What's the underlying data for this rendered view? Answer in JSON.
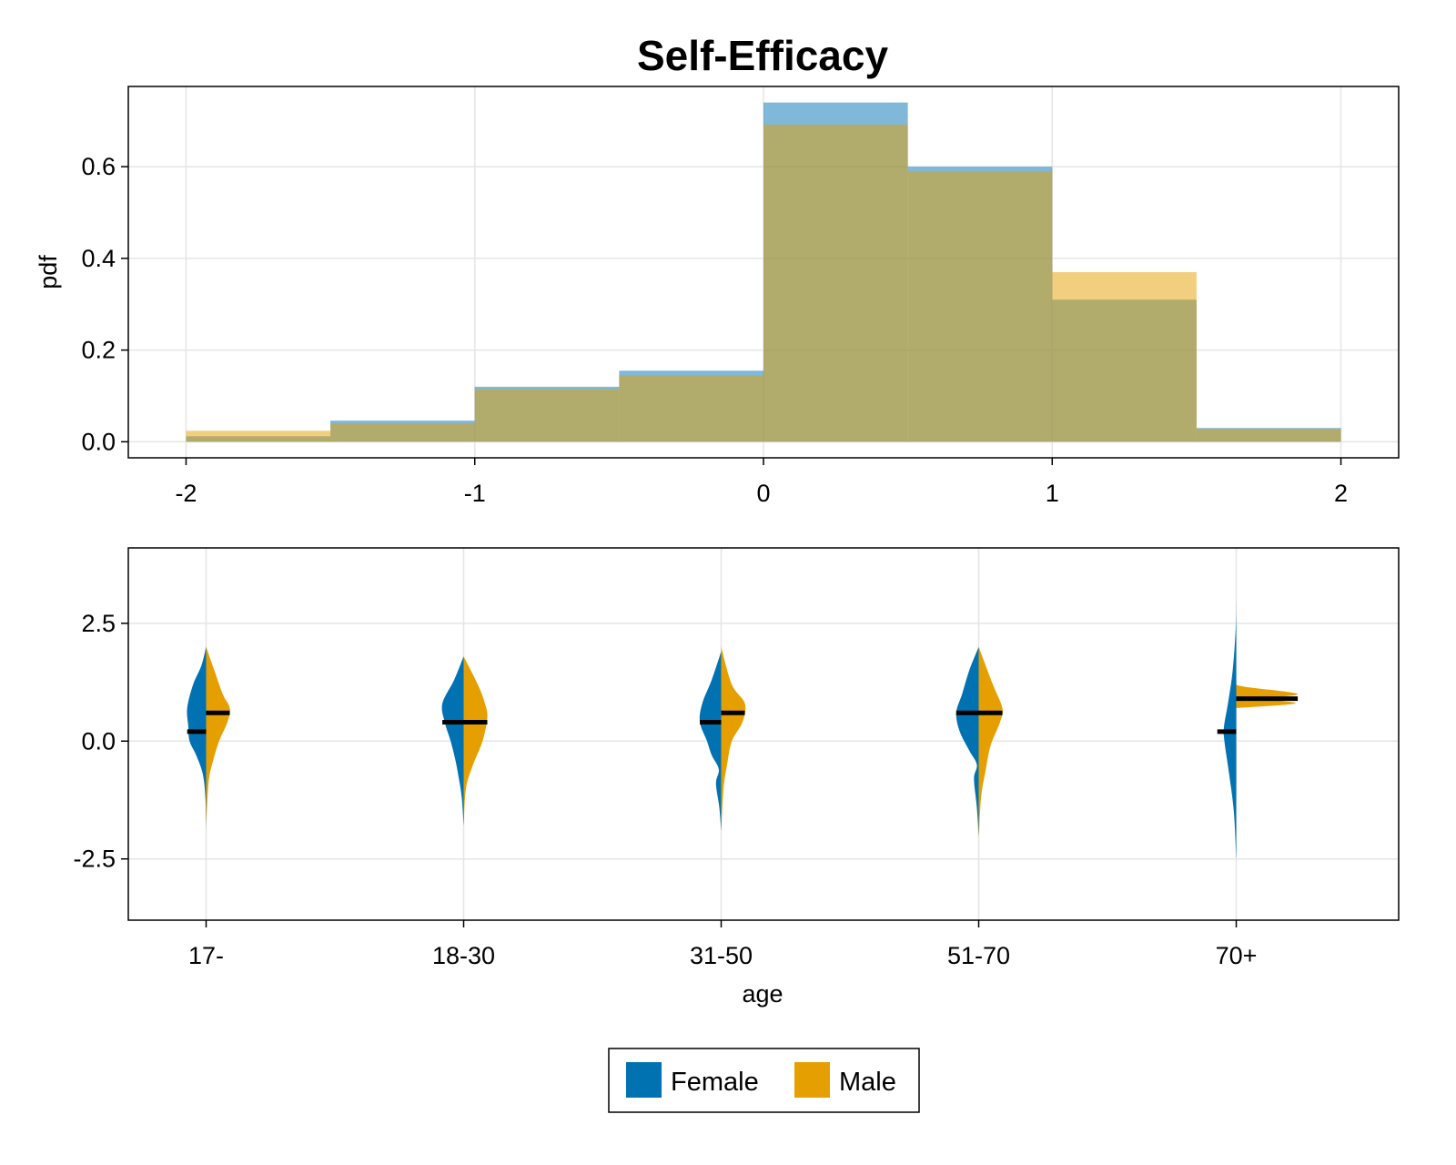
{
  "title": "Self-Efficacy",
  "colors": {
    "female": "#0072B2",
    "male": "#E69F00",
    "grid": "#E5E5E5",
    "median": "#000000"
  },
  "legend": {
    "placement": "bottom-center",
    "entries": [
      {
        "label": "Female",
        "color": "#0072B2"
      },
      {
        "label": "Male",
        "color": "#E69F00"
      }
    ]
  },
  "chart_data": [
    {
      "type": "bar",
      "subtype": "overlaid-histogram",
      "title": "Self-Efficacy",
      "xlabel": "",
      "ylabel": "pdf",
      "xlim": [
        -2.2,
        2.2
      ],
      "ylim": [
        -0.035,
        0.775
      ],
      "xticks": [
        -2,
        -1,
        0,
        1,
        2
      ],
      "xtick_labels": [
        "-2",
        "-1",
        "0",
        "1",
        "2"
      ],
      "yticks": [
        0.0,
        0.2,
        0.4,
        0.6
      ],
      "ytick_labels": [
        "0.0",
        "0.2",
        "0.4",
        "0.6"
      ],
      "grid": true,
      "bin_edges": [
        -2.0,
        -1.5,
        -1.0,
        -0.5,
        0.0,
        0.5,
        1.0,
        1.5,
        2.0
      ],
      "series": [
        {
          "name": "Female",
          "color": "#0072B2",
          "values": [
            0.012,
            0.046,
            0.12,
            0.155,
            0.74,
            0.6,
            0.31,
            0.03
          ]
        },
        {
          "name": "Male",
          "color": "#E69F00",
          "values": [
            0.024,
            0.04,
            0.115,
            0.145,
            0.692,
            0.59,
            0.37,
            0.028
          ]
        }
      ]
    },
    {
      "type": "violin",
      "subtype": "split-violin",
      "xlabel": "age",
      "ylabel": "",
      "categories": [
        "17-",
        "18-30",
        "31-50",
        "51-70",
        "70+"
      ],
      "ylim": [
        -3.8,
        4.1
      ],
      "yticks": [
        -2.5,
        0.0,
        2.5
      ],
      "ytick_labels": [
        "-2.5",
        "0.0",
        "2.5"
      ],
      "grid": true,
      "series": [
        {
          "name": "Female",
          "color": "#0072B2",
          "medians": [
            0.2,
            0.4,
            0.4,
            0.6,
            0.2
          ],
          "density_profiles": [
            [
              [
                -1.9,
                0
              ],
              [
                -1.2,
                0.03
              ],
              [
                -0.7,
                0.14
              ],
              [
                -0.3,
                0.42
              ],
              [
                0.0,
                0.7
              ],
              [
                0.3,
                0.75
              ],
              [
                0.7,
                0.8
              ],
              [
                1.2,
                0.55
              ],
              [
                1.6,
                0.2
              ],
              [
                2.0,
                0
              ]
            ],
            [
              [
                -1.8,
                0
              ],
              [
                -1.2,
                0.08
              ],
              [
                -0.8,
                0.2
              ],
              [
                -0.4,
                0.35
              ],
              [
                0.0,
                0.55
              ],
              [
                0.4,
                0.8
              ],
              [
                0.8,
                0.9
              ],
              [
                1.3,
                0.4
              ],
              [
                1.8,
                0
              ]
            ],
            [
              [
                -1.9,
                0
              ],
              [
                -1.4,
                0.08
              ],
              [
                -0.9,
                0.22
              ],
              [
                -0.6,
                0.1
              ],
              [
                -0.3,
                0.4
              ],
              [
                0.0,
                0.6
              ],
              [
                0.4,
                0.9
              ],
              [
                0.8,
                0.8
              ],
              [
                1.3,
                0.4
              ],
              [
                1.9,
                0
              ]
            ],
            [
              [
                -2.0,
                0
              ],
              [
                -1.4,
                0.08
              ],
              [
                -0.8,
                0.2
              ],
              [
                -0.5,
                0.08
              ],
              [
                -0.2,
                0.4
              ],
              [
                0.2,
                0.8
              ],
              [
                0.6,
                0.95
              ],
              [
                1.0,
                0.7
              ],
              [
                1.5,
                0.4
              ],
              [
                2.0,
                0
              ]
            ],
            [
              [
                -2.5,
                0
              ],
              [
                -1.5,
                0.1
              ],
              [
                -0.7,
                0.3
              ],
              [
                0.0,
                0.5
              ],
              [
                0.3,
                0.52
              ],
              [
                0.8,
                0.35
              ],
              [
                1.5,
                0.15
              ],
              [
                2.4,
                0.02
              ],
              [
                3.0,
                0
              ]
            ]
          ]
        },
        {
          "name": "Male",
          "color": "#E69F00",
          "medians": [
            0.6,
            0.4,
            0.6,
            0.6,
            0.9
          ],
          "density_profiles": [
            [
              [
                -1.8,
                0
              ],
              [
                -0.9,
                0.1
              ],
              [
                -0.5,
                0.25
              ],
              [
                0.0,
                0.55
              ],
              [
                0.4,
                0.9
              ],
              [
                0.7,
                1.0
              ],
              [
                1.0,
                0.7
              ],
              [
                1.5,
                0.35
              ],
              [
                2.0,
                0
              ]
            ],
            [
              [
                -1.8,
                0
              ],
              [
                -1.0,
                0.1
              ],
              [
                -0.5,
                0.4
              ],
              [
                0.0,
                0.8
              ],
              [
                0.5,
                1.0
              ],
              [
                0.8,
                0.9
              ],
              [
                1.2,
                0.6
              ],
              [
                1.8,
                0
              ]
            ],
            [
              [
                -1.9,
                0
              ],
              [
                -1.0,
                0.1
              ],
              [
                -0.5,
                0.25
              ],
              [
                0.0,
                0.45
              ],
              [
                0.4,
                0.9
              ],
              [
                0.8,
                1.0
              ],
              [
                1.2,
                0.45
              ],
              [
                2.0,
                0
              ]
            ],
            [
              [
                -2.1,
                0
              ],
              [
                -1.2,
                0.1
              ],
              [
                -0.6,
                0.3
              ],
              [
                -0.1,
                0.5
              ],
              [
                0.4,
                0.9
              ],
              [
                0.7,
                1.0
              ],
              [
                1.2,
                0.6
              ],
              [
                2.0,
                0
              ]
            ],
            [
              [
                0.7,
                0
              ],
              [
                0.8,
                2.5
              ],
              [
                0.9,
                1.2
              ],
              [
                1.0,
                2.6
              ],
              [
                1.15,
                0.4
              ],
              [
                1.2,
                0
              ]
            ]
          ]
        }
      ]
    }
  ]
}
